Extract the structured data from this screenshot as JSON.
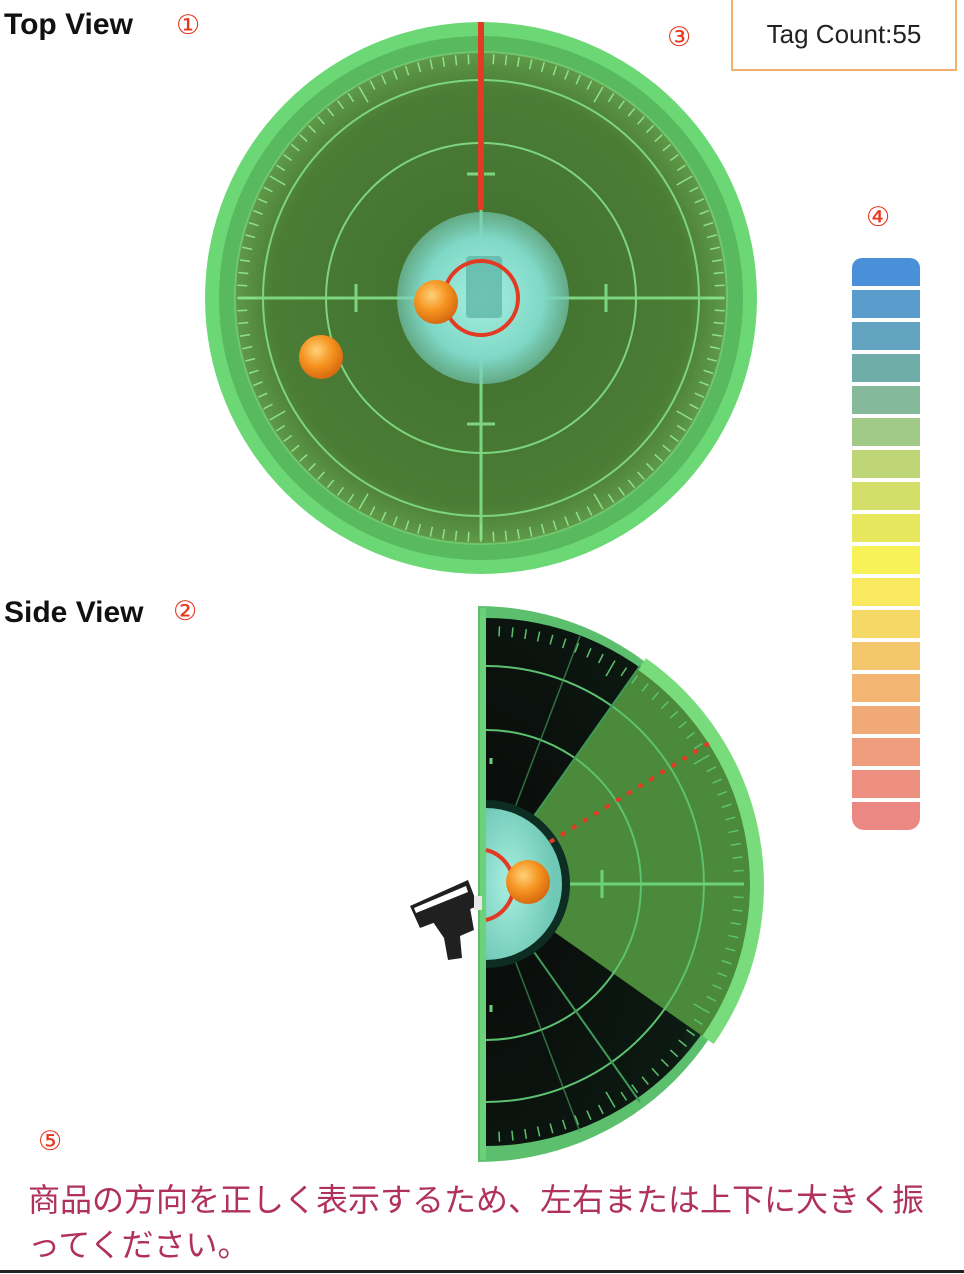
{
  "top_view": {
    "title": "Top View",
    "marker": "①"
  },
  "side_view": {
    "title": "Side View",
    "marker": "②"
  },
  "tag_count": {
    "text": "Tag Count:55",
    "marker": "③"
  },
  "legend": {
    "marker": "④",
    "colors": [
      "#4a90d9",
      "#5a9ccc",
      "#62a3bf",
      "#6fada9",
      "#84b99a",
      "#a1c988",
      "#bed676",
      "#d3df68",
      "#e6e75c",
      "#f6f258",
      "#f9e95e",
      "#f6d866",
      "#f4c66c",
      "#f2b672",
      "#f1a978",
      "#ef9c7c",
      "#ee9080",
      "#ec8884"
    ]
  },
  "instruction": {
    "marker": "⑤",
    "text": "商品の方向を正しく表示するため、左右または上下に大きく振ってください。"
  },
  "colors": {
    "radar_outer": "#66d872",
    "radar_inner": "#4a7a35",
    "radar_line": "#8be28d",
    "heading": "#e33a24",
    "tag": "#f39a2a",
    "center": "#8fe0d0"
  }
}
